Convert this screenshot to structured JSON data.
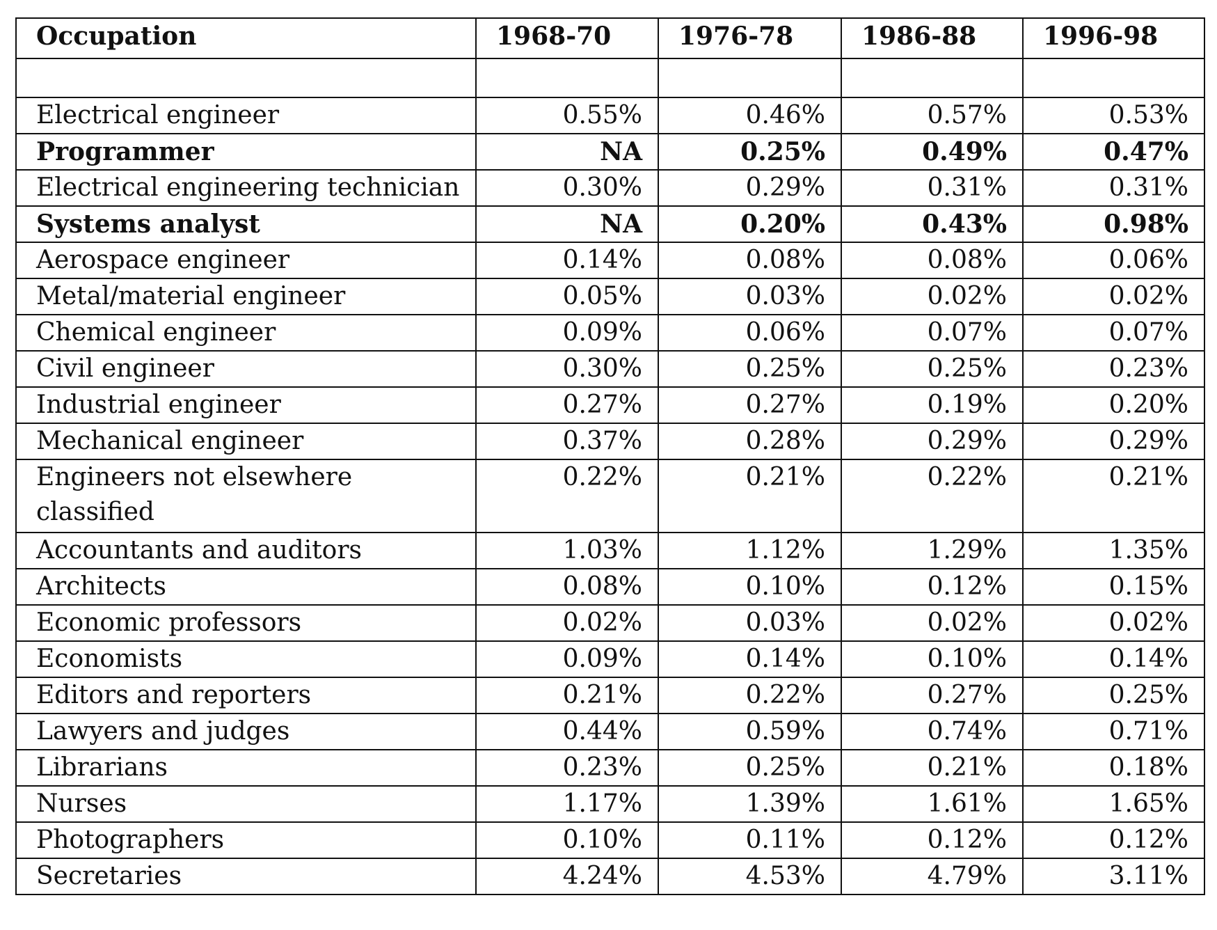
{
  "table": {
    "headers": [
      "Occupation",
      "1968-70",
      "1976-78",
      "1986-88",
      "1996-98"
    ],
    "rows": [
      {
        "occupation": "Electrical engineer",
        "values": [
          "0.55%",
          "0.46%",
          "0.57%",
          "0.53%"
        ],
        "bold": false
      },
      {
        "occupation": "Programmer",
        "values": [
          "NA",
          "0.25%",
          "0.49%",
          "0.47%"
        ],
        "bold": true
      },
      {
        "occupation": "Electrical engineering technician",
        "values": [
          "0.30%",
          "0.29%",
          "0.31%",
          "0.31%"
        ],
        "bold": false
      },
      {
        "occupation": "Systems analyst",
        "values": [
          "NA",
          "0.20%",
          "0.43%",
          "0.98%"
        ],
        "bold": true
      },
      {
        "occupation": "Aerospace engineer",
        "values": [
          "0.14%",
          "0.08%",
          "0.08%",
          "0.06%"
        ],
        "bold": false
      },
      {
        "occupation": "Metal/material engineer",
        "values": [
          "0.05%",
          "0.03%",
          "0.02%",
          "0.02%"
        ],
        "bold": false
      },
      {
        "occupation": "Chemical engineer",
        "values": [
          "0.09%",
          "0.06%",
          "0.07%",
          "0.07%"
        ],
        "bold": false
      },
      {
        "occupation": "Civil engineer",
        "values": [
          "0.30%",
          "0.25%",
          "0.25%",
          "0.23%"
        ],
        "bold": false
      },
      {
        "occupation": "Industrial engineer",
        "values": [
          "0.27%",
          "0.27%",
          "0.19%",
          "0.20%"
        ],
        "bold": false
      },
      {
        "occupation": "Mechanical engineer",
        "values": [
          "0.37%",
          "0.28%",
          "0.29%",
          "0.29%"
        ],
        "bold": false
      },
      {
        "occupation": "Engineers not elsewhere classified",
        "values": [
          "0.22%",
          "0.21%",
          "0.22%",
          "0.21%"
        ],
        "bold": false
      },
      {
        "occupation": "Accountants and auditors",
        "values": [
          "1.03%",
          "1.12%",
          "1.29%",
          "1.35%"
        ],
        "bold": false
      },
      {
        "occupation": "Architects",
        "values": [
          "0.08%",
          "0.10%",
          "0.12%",
          "0.15%"
        ],
        "bold": false
      },
      {
        "occupation": "Economic professors",
        "values": [
          "0.02%",
          "0.03%",
          "0.02%",
          "0.02%"
        ],
        "bold": false
      },
      {
        "occupation": "Economists",
        "values": [
          "0.09%",
          "0.14%",
          "0.10%",
          "0.14%"
        ],
        "bold": false
      },
      {
        "occupation": "Editors and reporters",
        "values": [
          "0.21%",
          "0.22%",
          "0.27%",
          "0.25%"
        ],
        "bold": false
      },
      {
        "occupation": "Lawyers and judges",
        "values": [
          "0.44%",
          "0.59%",
          "0.74%",
          "0.71%"
        ],
        "bold": false
      },
      {
        "occupation": "Librarians",
        "values": [
          "0.23%",
          "0.25%",
          "0.21%",
          "0.18%"
        ],
        "bold": false
      },
      {
        "occupation": "Nurses",
        "values": [
          "1.17%",
          "1.39%",
          "1.61%",
          "1.65%"
        ],
        "bold": false
      },
      {
        "occupation": "Photographers",
        "values": [
          "0.10%",
          "0.11%",
          "0.12%",
          "0.12%"
        ],
        "bold": false
      },
      {
        "occupation": "Secretaries",
        "values": [
          "4.24%",
          "4.53%",
          "4.79%",
          "3.11%"
        ],
        "bold": false
      }
    ]
  }
}
